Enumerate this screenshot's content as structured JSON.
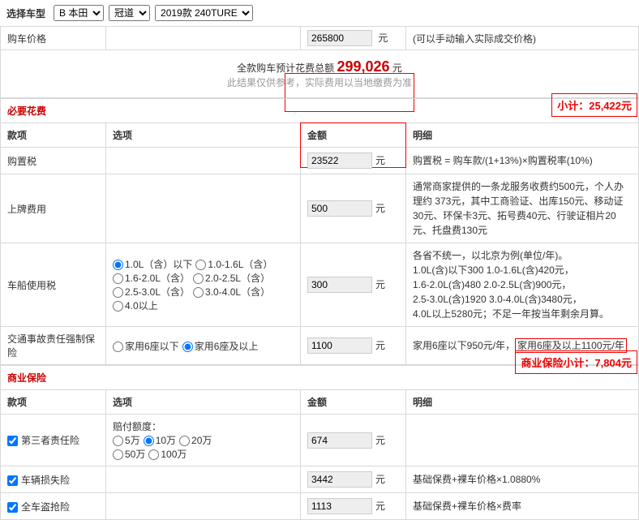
{
  "top": {
    "label": "选择车型",
    "brand_options": [
      "B 本田"
    ],
    "brand_selected": "B 本田",
    "model_options": [
      "冠道"
    ],
    "model_selected": "冠道",
    "trim_options": [
      "2019款 240TURE"
    ],
    "trim_selected": "2019款 240TURE"
  },
  "price_row": {
    "label": "购车价格",
    "value": "265800",
    "unit": "元",
    "hint": "(可以手动输入实际成交价格)"
  },
  "total": {
    "label": "全款购车预计花费总额",
    "value": "299,026",
    "unit": "元",
    "hint": "此结果仅供参考，实际费用以当地缴费为准"
  },
  "subtotals": {
    "mandatory": "小计：25,422元",
    "commercial": "商业保险小计：7,804元"
  },
  "headers": {
    "item": "款项",
    "option": "选项",
    "amount": "金额",
    "detail": "明细"
  },
  "sections": {
    "mandatory": "必要花费",
    "commercial": "商业保险"
  },
  "mandatory": [
    {
      "item": "购置税",
      "option": "",
      "amount": "23522",
      "unit": "元",
      "detail": "购置税 = 购车款/(1+13%)×购置税率(10%)",
      "amt_red": true
    },
    {
      "item": "上牌费用",
      "option": "",
      "amount": "500",
      "unit": "元",
      "detail": "通常商家提供的一条龙服务收费约500元，个人办理约 373元，其中工商验证、出库150元、移动证30元、环保卡3元、拓号费40元、行驶证相片20元、托盘费130元"
    },
    {
      "item": "车船使用税",
      "option_type": "engine",
      "amount": "300",
      "unit": "元",
      "detail": "各省不统一，以北京为例(单位/年)。\n1.0L(含)以下300 1.0-1.6L(含)420元，\n1.6-2.0L(含)480 2.0-2.5L(含)900元，\n2.5-3.0L(含)1920 3.0-4.0L(含)3480元，\n4.0L以上5280元；不足一年按当年剩余月算。"
    },
    {
      "item": "交通事故责任强制保险",
      "option_type": "seats",
      "amount": "1100",
      "unit": "元",
      "detail": "家用6座以下950元/年，家用6座及以上1100元/年",
      "detail_red": true
    }
  ],
  "engine_opts": [
    "1.0L（含）以下",
    "1.0-1.6L（含）",
    "1.6-2.0L（含）",
    "2.0-2.5L（含）",
    "2.5-3.0L（含）",
    "3.0-4.0L（含）",
    "4.0以上"
  ],
  "engine_checked": 0,
  "seat_opts": [
    "家用6座以下",
    "家用6座及以上"
  ],
  "seat_checked": 1,
  "commercial": [
    {
      "item": "第三者责任险",
      "checked": true,
      "option_type": "liab",
      "amount": "674",
      "unit": "元",
      "detail": ""
    },
    {
      "item": "车辆损失险",
      "checked": true,
      "amount": "3442",
      "unit": "元",
      "detail": "基础保费+裸车价格×1.0880%"
    },
    {
      "item": "全车盗抢险",
      "checked": true,
      "amount": "1113",
      "unit": "元",
      "detail": "基础保费+裸车价格×费率"
    }
  ],
  "liab_label": "赔付额度：",
  "liab_opts": [
    "5万",
    "10万",
    "20万",
    "50万",
    "100万"
  ],
  "liab_checked": 1,
  "colors": {
    "accent": "#c00",
    "redbox": "#e00"
  }
}
